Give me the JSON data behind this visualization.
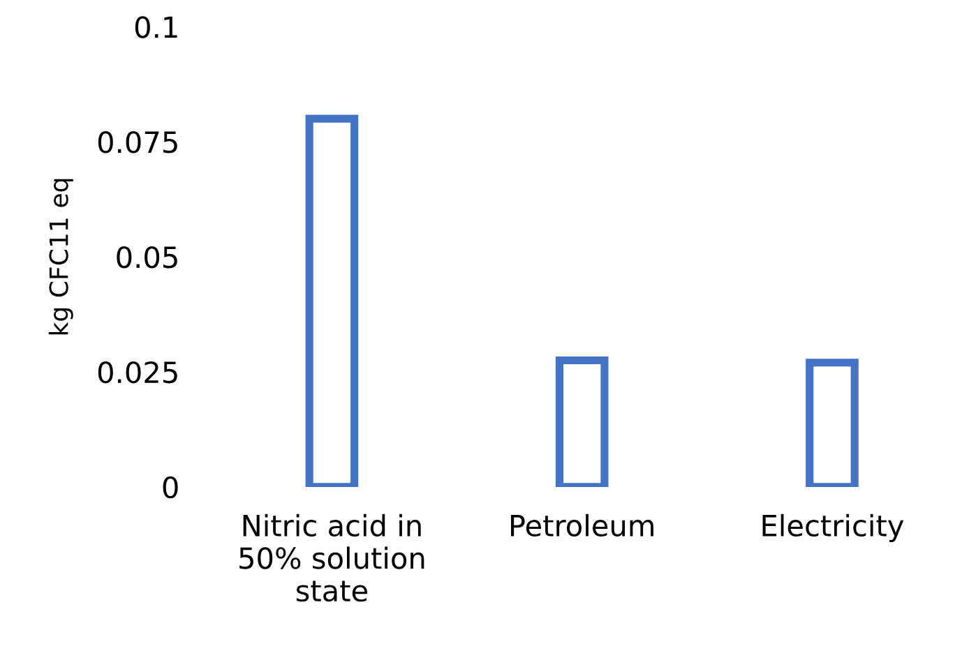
{
  "chart_data": {
    "type": "bar",
    "ylabel": "kg CFC11 eq",
    "categories": [
      "Nitric acid in\n50% solution\nstate",
      "Petroleum",
      "Electricity"
    ],
    "series": [
      {
        "color": "#4472c4",
        "values": [
          0.08,
          0.0275,
          0.027
        ]
      }
    ],
    "ylim": [
      0,
      0.1
    ],
    "yticks": [
      0,
      0.025,
      0.05,
      0.075,
      0.1
    ],
    "grid": false,
    "legend": false
  }
}
